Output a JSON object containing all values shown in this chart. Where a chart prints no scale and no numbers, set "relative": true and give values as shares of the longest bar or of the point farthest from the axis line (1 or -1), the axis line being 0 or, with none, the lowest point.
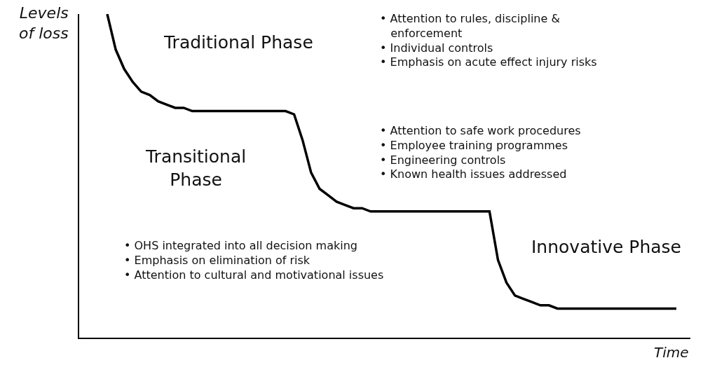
{
  "chart_data": {
    "type": "line",
    "relative": true,
    "xlabel": "Time",
    "ylabel": "Levels\nof loss",
    "categories": [
      null,
      null,
      null,
      null,
      null,
      null,
      null,
      null,
      null,
      null,
      null,
      null,
      null,
      null,
      null,
      null,
      null,
      null,
      null,
      null,
      null,
      null,
      null,
      null,
      null,
      null,
      null,
      null,
      null,
      null,
      null,
      null,
      null,
      null,
      null,
      null,
      null,
      null,
      null,
      null,
      null,
      null,
      null,
      null,
      null,
      null,
      null,
      null,
      null,
      null,
      null,
      null,
      null,
      null,
      null,
      null,
      null,
      null,
      null,
      null,
      null,
      null,
      null,
      null,
      null,
      null,
      null,
      null
    ],
    "series": [
      {
        "color": "#000000",
        "values": [
          1.0,
          0.89,
          0.83,
          0.79,
          0.76,
          0.75,
          0.73,
          0.72,
          0.71,
          0.71,
          0.7,
          0.7,
          0.7,
          0.7,
          0.7,
          0.7,
          0.7,
          0.7,
          0.7,
          0.7,
          0.7,
          0.7,
          0.69,
          0.61,
          0.51,
          0.46,
          0.44,
          0.42,
          0.41,
          0.4,
          0.4,
          0.39,
          0.39,
          0.39,
          0.39,
          0.39,
          0.39,
          0.39,
          0.39,
          0.39,
          0.39,
          0.39,
          0.39,
          0.39,
          0.39,
          0.39,
          0.24,
          0.17,
          0.13,
          0.12,
          0.11,
          0.1,
          0.1,
          0.09,
          0.09,
          0.09,
          0.09,
          0.09,
          0.09,
          0.09,
          0.09,
          0.09,
          0.09,
          0.09,
          0.09,
          0.09,
          0.09,
          0.09
        ]
      }
    ],
    "marker": "none",
    "line_style": "solid",
    "annotations": [
      "Traditional Phase",
      "Transitional\nPhase",
      "Innovative Phase",
      "• Attention to rules, discipline &\n   enforcement\n• Individual controls\n• Emphasis on acute effect injury risks",
      "• Attention to safe work procedures\n• Employee training programmes\n• Engineering controls\n• Known health issues addressed",
      "• OHS integrated into all decision making\n• Emphasis on elimination of risk\n• Attention to cultural and motivational issues"
    ]
  }
}
